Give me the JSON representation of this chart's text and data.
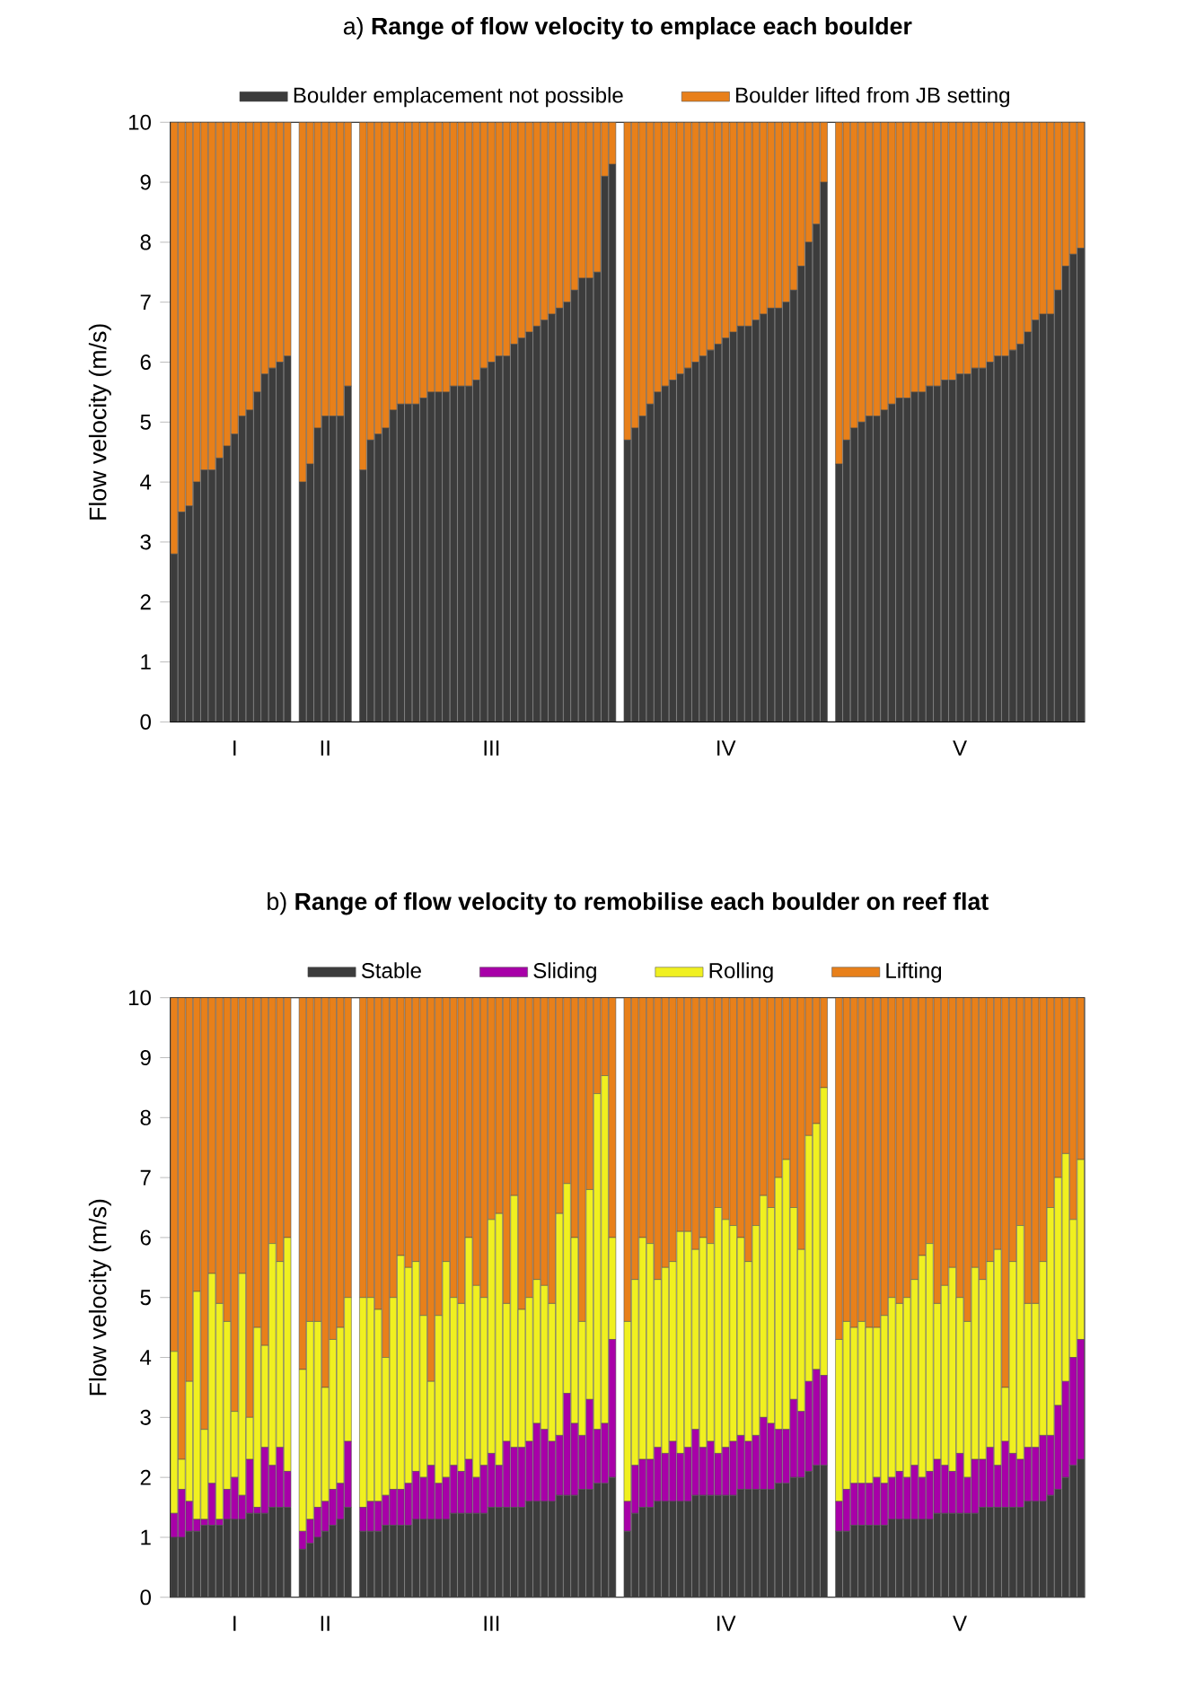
{
  "chart_data": [
    {
      "type": "bar",
      "stacked": true,
      "title": "a) **Range of flow velocity to emplace each boulder**",
      "ylabel": "Flow velocity (m/s)",
      "ylim": [
        0,
        10
      ],
      "yticks": [
        0,
        1,
        2,
        3,
        4,
        5,
        6,
        7,
        8,
        9,
        10
      ],
      "legend": "top",
      "categories": [
        null,
        null,
        null,
        null,
        null,
        null,
        null,
        null,
        "I",
        null,
        null,
        null,
        null,
        null,
        null,
        null,
        null,
        null,
        null,
        null,
        "II",
        null,
        null,
        null,
        null,
        null,
        null,
        null,
        null,
        null,
        null,
        null,
        null,
        null,
        null,
        null,
        null,
        null,
        null,
        null,
        null,
        null,
        "III",
        null,
        null,
        null,
        null,
        null,
        null,
        null,
        null,
        null,
        null,
        null,
        null,
        null,
        null,
        null,
        null,
        null,
        null,
        null,
        null,
        null,
        null,
        null,
        null,
        null,
        null,
        null,
        null,
        null,
        null,
        "IV",
        null,
        null,
        null,
        null,
        null,
        null,
        null,
        null,
        null,
        null,
        null,
        null,
        null,
        null,
        null,
        null,
        null,
        null,
        null,
        null,
        null,
        null,
        null,
        null,
        null,
        null,
        null,
        null,
        null,
        null,
        "V",
        null,
        null,
        null,
        null,
        null,
        null,
        null,
        null,
        null,
        null,
        null,
        null,
        null,
        null,
        null,
        null
      ],
      "series": [
        {
          "name": "Boulder emplacement not possible",
          "color": "#3c3c3c",
          "values": [
            2.8,
            3.5,
            3.6,
            4.0,
            4.2,
            4.2,
            4.4,
            4.6,
            4.8,
            5.1,
            5.2,
            5.5,
            5.8,
            5.9,
            6.0,
            6.1,
            null,
            4.0,
            4.3,
            4.9,
            5.1,
            5.1,
            5.1,
            5.6,
            null,
            4.2,
            4.7,
            4.8,
            4.9,
            5.2,
            5.3,
            5.3,
            5.3,
            5.4,
            5.5,
            5.5,
            5.5,
            5.6,
            5.6,
            5.6,
            5.7,
            5.9,
            6.0,
            6.1,
            6.1,
            6.3,
            6.4,
            6.5,
            6.6,
            6.7,
            6.8,
            6.9,
            7.0,
            7.2,
            7.4,
            7.4,
            7.5,
            9.1,
            9.3,
            null,
            4.7,
            4.9,
            5.1,
            5.3,
            5.5,
            5.6,
            5.7,
            5.8,
            5.9,
            6.0,
            6.1,
            6.2,
            6.3,
            6.4,
            6.5,
            6.6,
            6.6,
            6.7,
            6.8,
            6.9,
            6.9,
            7.0,
            7.2,
            7.6,
            8.0,
            8.3,
            9.0,
            null,
            4.3,
            4.7,
            4.9,
            5.0,
            5.1,
            5.1,
            5.2,
            5.3,
            5.4,
            5.4,
            5.5,
            5.5,
            5.6,
            5.6,
            5.7,
            5.7,
            5.8,
            5.8,
            5.9,
            5.9,
            6.0,
            6.1,
            6.1,
            6.2,
            6.3,
            6.5,
            6.7,
            6.8,
            6.8,
            7.2,
            7.6,
            7.8,
            7.9
          ]
        },
        {
          "name": "Boulder lifted from JB setting",
          "color": "#e8801a",
          "values": [
            7.2,
            6.5,
            6.4,
            6.0,
            5.8,
            5.8,
            5.6,
            5.4,
            5.2,
            4.9,
            4.8,
            4.5,
            4.2,
            4.1,
            4.0,
            3.9,
            null,
            6.0,
            5.7,
            5.1,
            4.9,
            4.9,
            4.9,
            4.4,
            null,
            5.8,
            5.3,
            5.2,
            5.1,
            4.8,
            4.7,
            4.7,
            4.7,
            4.6,
            4.5,
            4.5,
            4.5,
            4.4,
            4.4,
            4.4,
            4.3,
            4.1,
            4.0,
            3.9,
            3.9,
            3.7,
            3.6,
            3.5,
            3.4,
            3.3,
            3.2,
            3.1,
            3.0,
            2.8,
            2.6,
            2.6,
            2.5,
            0.9,
            0.7,
            null,
            5.3,
            5.1,
            4.9,
            4.7,
            4.5,
            4.4,
            4.3,
            4.2,
            4.1,
            4.0,
            3.9,
            3.8,
            3.7,
            3.6,
            3.5,
            3.4,
            3.4,
            3.3,
            3.2,
            3.1,
            3.1,
            3.0,
            2.8,
            2.4,
            2.0,
            1.7,
            1.0,
            null,
            5.7,
            5.3,
            5.1,
            5.0,
            4.9,
            4.9,
            4.8,
            4.7,
            4.6,
            4.6,
            4.5,
            4.5,
            4.4,
            4.4,
            4.3,
            4.3,
            4.2,
            4.2,
            4.1,
            4.1,
            4.0,
            3.9,
            3.9,
            3.8,
            3.7,
            3.5,
            3.3,
            3.2,
            3.2,
            2.8,
            2.4,
            2.2,
            2.1
          ]
        }
      ]
    },
    {
      "type": "bar",
      "stacked": true,
      "title": "b) **Range of flow velocity to remobilise each boulder on reef flat**",
      "ylabel": "Flow velocity (m/s)",
      "ylim": [
        0,
        10
      ],
      "yticks": [
        0,
        1,
        2,
        3,
        4,
        5,
        6,
        7,
        8,
        9,
        10
      ],
      "legend": "top",
      "categories": [
        null,
        null,
        null,
        null,
        null,
        null,
        null,
        null,
        "I",
        null,
        null,
        null,
        null,
        null,
        null,
        null,
        null,
        null,
        null,
        null,
        "II",
        null,
        null,
        null,
        null,
        null,
        null,
        null,
        null,
        null,
        null,
        null,
        null,
        null,
        null,
        null,
        null,
        null,
        null,
        null,
        null,
        null,
        "III",
        null,
        null,
        null,
        null,
        null,
        null,
        null,
        null,
        null,
        null,
        null,
        null,
        null,
        null,
        null,
        null,
        null,
        null,
        null,
        null,
        null,
        null,
        null,
        null,
        null,
        null,
        null,
        null,
        null,
        null,
        "IV",
        null,
        null,
        null,
        null,
        null,
        null,
        null,
        null,
        null,
        null,
        null,
        null,
        null,
        null,
        null,
        null,
        null,
        null,
        null,
        null,
        null,
        null,
        null,
        null,
        null,
        null,
        null,
        null,
        null,
        null,
        "V",
        null,
        null,
        null,
        null,
        null,
        null,
        null,
        null,
        null,
        null,
        null,
        null,
        null,
        null,
        null,
        null
      ],
      "series": [
        {
          "name": "Stable",
          "color": "#3c3c3c",
          "values": [
            1.0,
            1.0,
            1.1,
            1.1,
            1.2,
            1.2,
            1.2,
            1.3,
            1.3,
            1.3,
            1.4,
            1.4,
            1.4,
            1.5,
            1.5,
            1.5,
            null,
            0.8,
            0.9,
            1.0,
            1.1,
            1.2,
            1.3,
            1.5,
            null,
            1.1,
            1.1,
            1.1,
            1.2,
            1.2,
            1.2,
            1.2,
            1.3,
            1.3,
            1.3,
            1.3,
            1.3,
            1.4,
            1.4,
            1.4,
            1.4,
            1.4,
            1.5,
            1.5,
            1.5,
            1.5,
            1.5,
            1.6,
            1.6,
            1.6,
            1.6,
            1.7,
            1.7,
            1.7,
            1.8,
            1.8,
            1.9,
            1.9,
            2.0,
            null,
            1.1,
            1.4,
            1.5,
            1.5,
            1.6,
            1.6,
            1.6,
            1.6,
            1.6,
            1.7,
            1.7,
            1.7,
            1.7,
            1.7,
            1.7,
            1.8,
            1.8,
            1.8,
            1.8,
            1.8,
            1.9,
            1.9,
            2.0,
            2.0,
            2.1,
            2.2,
            2.2,
            null,
            1.1,
            1.1,
            1.2,
            1.2,
            1.2,
            1.2,
            1.2,
            1.3,
            1.3,
            1.3,
            1.3,
            1.3,
            1.3,
            1.4,
            1.4,
            1.4,
            1.4,
            1.4,
            1.4,
            1.5,
            1.5,
            1.5,
            1.5,
            1.5,
            1.5,
            1.6,
            1.6,
            1.6,
            1.7,
            1.8,
            2.0,
            2.2,
            2.3
          ]
        },
        {
          "name": "Sliding",
          "color": "#a800a8",
          "values": [
            0.4,
            0.8,
            0.5,
            0.2,
            0.1,
            0.7,
            0.1,
            0.5,
            0.7,
            0.4,
            0.9,
            0.1,
            1.1,
            0.7,
            1.0,
            0.6,
            null,
            0.3,
            0.4,
            0.5,
            0.5,
            0.6,
            0.6,
            1.1,
            null,
            0.4,
            0.5,
            0.5,
            0.5,
            0.6,
            0.6,
            0.7,
            0.8,
            0.7,
            0.9,
            0.6,
            0.7,
            0.8,
            0.7,
            0.9,
            0.6,
            0.8,
            0.9,
            0.7,
            1.1,
            1.0,
            1.0,
            1.0,
            1.3,
            1.2,
            1.0,
            1.0,
            1.7,
            1.2,
            0.9,
            1.5,
            0.9,
            1.0,
            2.3,
            null,
            0.5,
            0.8,
            0.8,
            0.8,
            0.9,
            0.8,
            1.0,
            0.8,
            0.9,
            1.1,
            0.8,
            0.9,
            0.7,
            0.8,
            0.9,
            0.9,
            0.8,
            0.9,
            1.2,
            1.1,
            0.9,
            0.9,
            1.3,
            1.1,
            1.5,
            1.6,
            1.5,
            null,
            0.5,
            0.7,
            0.7,
            0.7,
            0.7,
            0.8,
            0.7,
            0.7,
            0.8,
            0.7,
            0.9,
            0.7,
            0.8,
            0.9,
            0.8,
            0.7,
            1.0,
            0.6,
            0.9,
            0.8,
            1.0,
            0.7,
            1.1,
            0.9,
            0.8,
            0.9,
            0.9,
            1.1,
            1.0,
            1.4,
            1.6,
            1.8,
            2.0
          ]
        },
        {
          "name": "Rolling",
          "color": "#f0f020",
          "values": [
            2.7,
            0.5,
            2.0,
            3.8,
            1.5,
            3.5,
            3.6,
            2.8,
            1.1,
            3.7,
            0.7,
            3.0,
            1.7,
            3.7,
            3.1,
            3.9,
            null,
            2.7,
            3.3,
            3.1,
            1.9,
            2.5,
            2.6,
            2.4,
            null,
            3.5,
            3.4,
            3.2,
            2.3,
            3.2,
            3.9,
            3.6,
            3.5,
            2.7,
            1.4,
            2.8,
            3.6,
            2.8,
            2.8,
            3.7,
            3.2,
            2.8,
            3.9,
            4.2,
            2.3,
            4.2,
            2.3,
            2.4,
            2.4,
            2.4,
            2.3,
            3.7,
            3.5,
            3.1,
            1.9,
            3.5,
            5.6,
            5.8,
            1.7,
            null,
            3.0,
            3.1,
            3.7,
            3.6,
            2.8,
            3.1,
            3.0,
            3.7,
            3.6,
            3.0,
            3.5,
            3.3,
            4.1,
            3.8,
            3.6,
            3.3,
            3.0,
            3.5,
            3.7,
            3.6,
            4.2,
            4.5,
            3.2,
            2.7,
            4.1,
            4.1,
            4.8,
            null,
            2.7,
            2.8,
            2.6,
            2.7,
            2.6,
            2.5,
            2.8,
            3.0,
            2.8,
            3.0,
            3.1,
            3.7,
            3.8,
            2.6,
            3.0,
            3.4,
            2.6,
            2.6,
            3.2,
            3.0,
            3.1,
            3.6,
            0.9,
            3.2,
            3.9,
            2.4,
            2.4,
            2.9,
            3.8,
            3.8,
            3.8,
            2.3,
            3.0
          ]
        },
        {
          "name": "Lifting",
          "color": "#e8801a",
          "values": [
            5.9,
            7.7,
            6.4,
            4.9,
            7.2,
            4.6,
            5.1,
            5.4,
            6.9,
            4.6,
            7.0,
            5.5,
            5.8,
            4.1,
            4.4,
            4.0,
            null,
            6.2,
            5.4,
            5.4,
            6.5,
            5.7,
            5.5,
            5.0,
            null,
            5.0,
            5.0,
            5.2,
            6.0,
            5.0,
            4.3,
            4.5,
            4.4,
            5.3,
            6.4,
            5.3,
            4.4,
            5.0,
            5.1,
            4.0,
            4.8,
            5.0,
            3.7,
            3.6,
            5.1,
            3.3,
            5.2,
            5.0,
            4.7,
            4.8,
            5.1,
            3.6,
            3.1,
            4.0,
            5.4,
            3.2,
            1.6,
            1.3,
            4.0,
            null,
            5.4,
            4.7,
            4.0,
            4.1,
            4.7,
            4.5,
            4.4,
            3.9,
            3.9,
            4.2,
            4.0,
            4.1,
            3.5,
            3.7,
            3.8,
            4.0,
            4.4,
            3.8,
            3.3,
            3.5,
            3.0,
            2.7,
            3.5,
            4.2,
            2.3,
            2.1,
            1.5,
            null,
            5.7,
            5.4,
            5.5,
            5.4,
            5.5,
            5.5,
            5.3,
            5.0,
            5.1,
            5.0,
            4.7,
            4.3,
            4.1,
            5.1,
            4.8,
            4.5,
            5.0,
            5.4,
            4.5,
            4.7,
            4.4,
            4.2,
            6.5,
            4.4,
            3.8,
            5.1,
            5.1,
            4.4,
            3.5,
            3.0,
            2.6,
            3.7,
            2.7
          ]
        }
      ]
    }
  ]
}
